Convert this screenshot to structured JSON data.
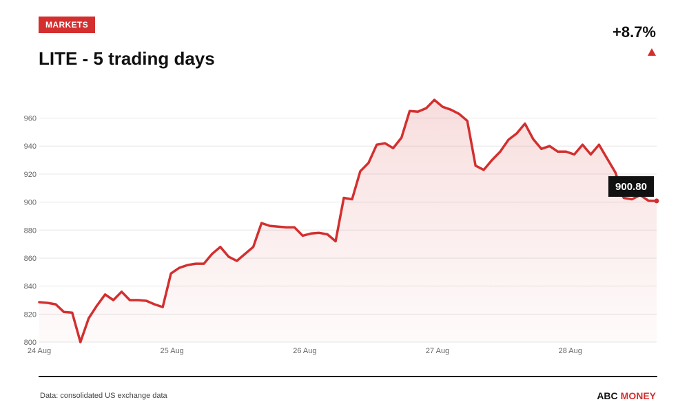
{
  "header": {
    "badge": "MARKETS",
    "change": "+8.7%",
    "change_direction": "up"
  },
  "footer": {
    "source": "Data: consolidated US exchange data",
    "brand_a": "ABC",
    "brand_b": "MONEY"
  },
  "colors": {
    "accent": "#d32f2f",
    "grid": "#e6e6e6",
    "text": "#111111",
    "axis_text": "#666666"
  },
  "chart_data": {
    "type": "line",
    "title": "LITE - 5 trading days",
    "xlabel": "",
    "ylabel": "",
    "ylim": [
      800,
      960
    ],
    "yticks": [
      800,
      820,
      840,
      860,
      880,
      900,
      920,
      940,
      960
    ],
    "xticks": [
      "24 Aug",
      "25 Aug",
      "26 Aug",
      "27 Aug",
      "28 Aug"
    ],
    "grid": true,
    "area_fill": true,
    "last_value_label": "900.80",
    "series": [
      {
        "values": [
          828.5,
          828,
          827,
          821.5,
          821,
          800,
          817,
          826,
          834,
          830,
          836,
          830,
          830,
          829.5,
          827,
          825,
          849,
          853,
          855,
          856,
          856,
          863,
          868,
          861,
          858,
          863,
          868,
          885,
          883,
          882.5,
          882,
          882,
          876,
          877.5,
          878,
          877,
          872,
          903,
          902,
          922,
          928,
          941,
          942,
          938.5,
          946,
          965,
          964.5,
          967,
          973,
          968,
          966,
          963,
          958,
          926,
          923,
          930,
          936,
          944.5,
          949,
          956,
          945,
          938,
          940,
          936,
          936,
          934,
          941,
          934,
          941,
          931,
          921,
          903,
          902,
          905,
          901,
          900.8
        ]
      }
    ]
  }
}
